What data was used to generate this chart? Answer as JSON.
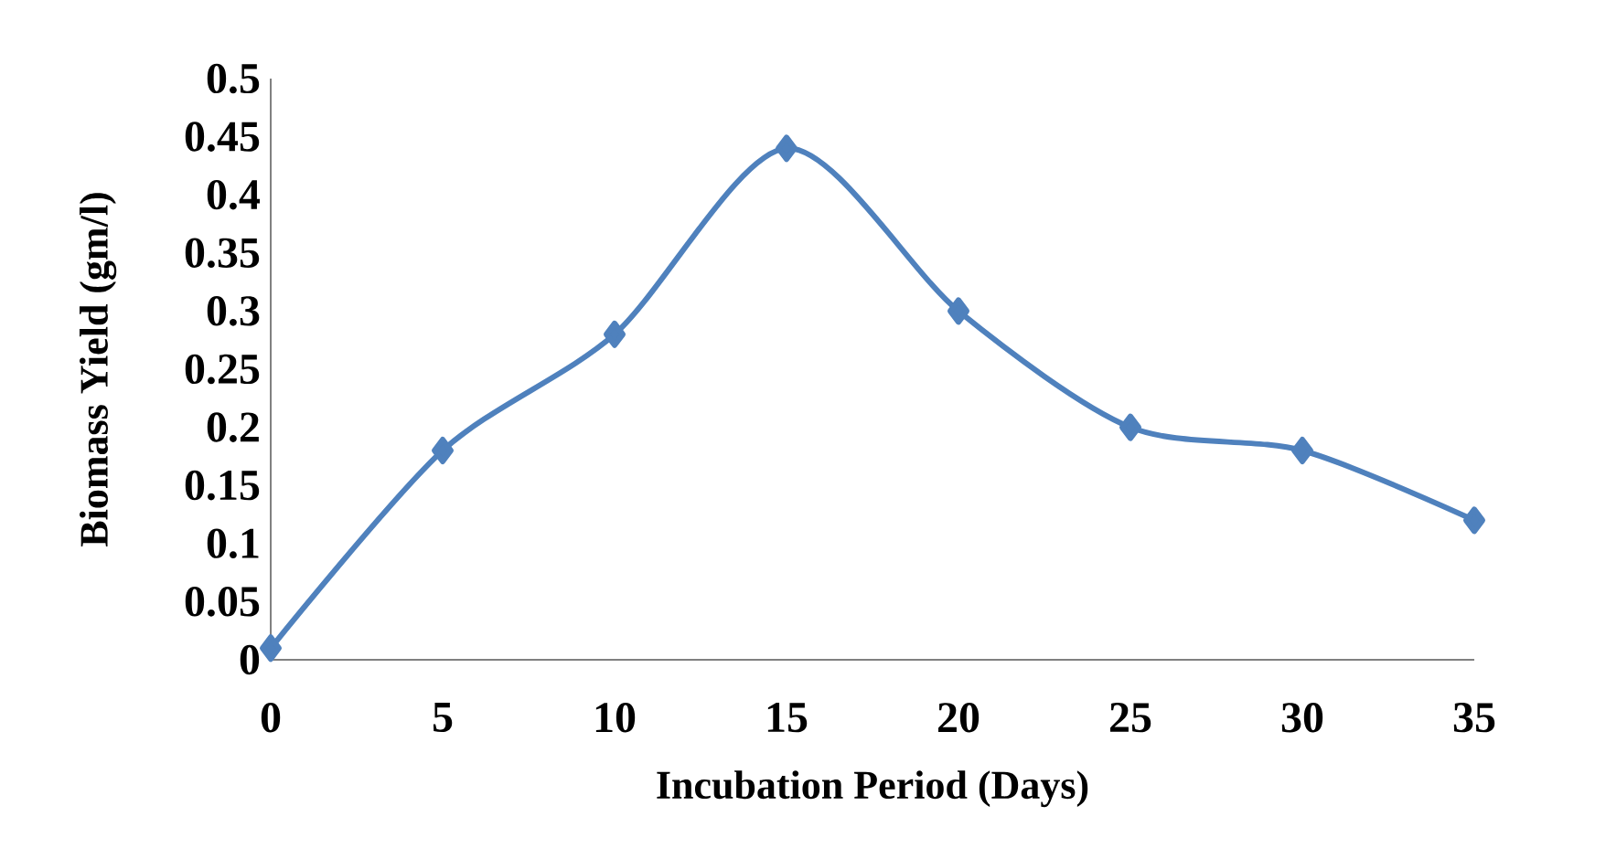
{
  "chart_data": {
    "type": "line",
    "xlabel": "Incubation Period (Days)",
    "ylabel": "Biomass Yield (gm/l)",
    "categories": [
      "0",
      "5",
      "10",
      "15",
      "20",
      "25",
      "30",
      "35"
    ],
    "series": [
      {
        "color": "#4f81bd",
        "values": [
          0.01,
          0.18,
          0.28,
          0.44,
          0.3,
          0.2,
          0.18,
          0.12
        ]
      }
    ],
    "ylim": [
      0,
      0.5
    ],
    "yticks": [
      0,
      0.05,
      0.1,
      0.15,
      0.2,
      0.25,
      0.3,
      0.35,
      0.4,
      0.45,
      0.5
    ],
    "marker": "diamond",
    "line_style": "solid"
  }
}
